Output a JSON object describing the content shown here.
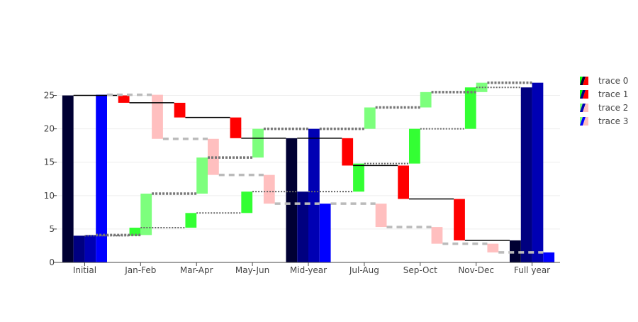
{
  "chart_data": {
    "type": "waterfall",
    "title": "",
    "xlabel": "",
    "ylabel": "",
    "ylim": [
      0,
      27.5
    ],
    "yticks": [
      0,
      5,
      10,
      15,
      20,
      25
    ],
    "categories": [
      "Initial",
      "Jan-Feb",
      "Mar-Apr",
      "May-Jun",
      "Mid-year",
      "Jul-Aug",
      "Sep-Oct",
      "Nov-Dec",
      "Full year"
    ],
    "legend": {
      "position": "right",
      "items": [
        "trace 0",
        "trace 1",
        "trace 2",
        "trace 3"
      ]
    },
    "colors": {
      "increasing": "#00ff00",
      "decreasing": "#ff0000",
      "totals": [
        "#000033",
        "#000080",
        "#0000b3",
        "#0000ff"
      ]
    },
    "series": [
      {
        "name": "trace 0",
        "kind": "solid",
        "bars": [
          {
            "category": "Initial",
            "type": "total",
            "base": 0,
            "end": 25
          },
          {
            "category": "Jan-Feb",
            "type": "delta",
            "base": 25,
            "end": 23.9
          },
          {
            "category": "Mar-Apr",
            "type": "delta",
            "base": 23.9,
            "end": 21.7
          },
          {
            "category": "May-Jun",
            "type": "delta",
            "base": 21.7,
            "end": 18.6
          },
          {
            "category": "Mid-year",
            "type": "total",
            "base": 0,
            "end": 18.6
          },
          {
            "category": "Jul-Aug",
            "type": "delta",
            "base": 18.6,
            "end": 14.5
          },
          {
            "category": "Sep-Oct",
            "type": "delta",
            "base": 14.5,
            "end": 9.5
          },
          {
            "category": "Nov-Dec",
            "type": "delta",
            "base": 9.5,
            "end": 3.3
          },
          {
            "category": "Full year",
            "type": "total",
            "base": 0,
            "end": 3.3
          }
        ]
      },
      {
        "name": "trace 1",
        "kind": "solid",
        "bars": [
          {
            "category": "Initial",
            "type": "total",
            "base": 0,
            "end": 4
          },
          {
            "category": "Jan-Feb",
            "type": "delta",
            "base": 4,
            "end": 5.2
          },
          {
            "category": "Mar-Apr",
            "type": "delta",
            "base": 5.2,
            "end": 7.4
          },
          {
            "category": "May-Jun",
            "type": "delta",
            "base": 7.4,
            "end": 10.6
          },
          {
            "category": "Mid-year",
            "type": "total",
            "base": 0,
            "end": 10.6
          },
          {
            "category": "Jul-Aug",
            "type": "delta",
            "base": 10.6,
            "end": 14.8
          },
          {
            "category": "Sep-Oct",
            "type": "delta",
            "base": 14.8,
            "end": 20
          },
          {
            "category": "Nov-Dec",
            "type": "delta",
            "base": 20,
            "end": 26.2
          },
          {
            "category": "Full year",
            "type": "total",
            "base": 0,
            "end": 26.2
          }
        ]
      },
      {
        "name": "trace 2",
        "kind": "light",
        "bars": [
          {
            "category": "Initial",
            "type": "total",
            "base": 0,
            "end": 4.1
          },
          {
            "category": "Jan-Feb",
            "type": "delta",
            "base": 4.1,
            "end": 10.3
          },
          {
            "category": "Mar-Apr",
            "type": "delta",
            "base": 10.3,
            "end": 15.7
          },
          {
            "category": "May-Jun",
            "type": "delta",
            "base": 15.7,
            "end": 20
          },
          {
            "category": "Mid-year",
            "type": "total",
            "base": 0,
            "end": 20
          },
          {
            "category": "Jul-Aug",
            "type": "delta",
            "base": 20,
            "end": 23.2
          },
          {
            "category": "Sep-Oct",
            "type": "delta",
            "base": 23.2,
            "end": 25.5
          },
          {
            "category": "Nov-Dec",
            "type": "delta",
            "base": 25.5,
            "end": 26.9
          },
          {
            "category": "Full year",
            "type": "total",
            "base": 0,
            "end": 26.9
          }
        ]
      },
      {
        "name": "trace 3",
        "kind": "light",
        "bars": [
          {
            "category": "Initial",
            "type": "total",
            "base": 0,
            "end": 25.1
          },
          {
            "category": "Jan-Feb",
            "type": "delta",
            "base": 25.1,
            "end": 18.5
          },
          {
            "category": "Mar-Apr",
            "type": "delta",
            "base": 18.5,
            "end": 13.1
          },
          {
            "category": "May-Jun",
            "type": "delta",
            "base": 13.1,
            "end": 8.8
          },
          {
            "category": "Mid-year",
            "type": "total",
            "base": 0,
            "end": 8.8
          },
          {
            "category": "Jul-Aug",
            "type": "delta",
            "base": 8.8,
            "end": 5.3
          },
          {
            "category": "Sep-Oct",
            "type": "delta",
            "base": 5.3,
            "end": 2.8
          },
          {
            "category": "Nov-Dec",
            "type": "delta",
            "base": 2.8,
            "end": 1.5
          },
          {
            "category": "Full year",
            "type": "total",
            "base": 0,
            "end": 1.5
          }
        ]
      }
    ]
  }
}
